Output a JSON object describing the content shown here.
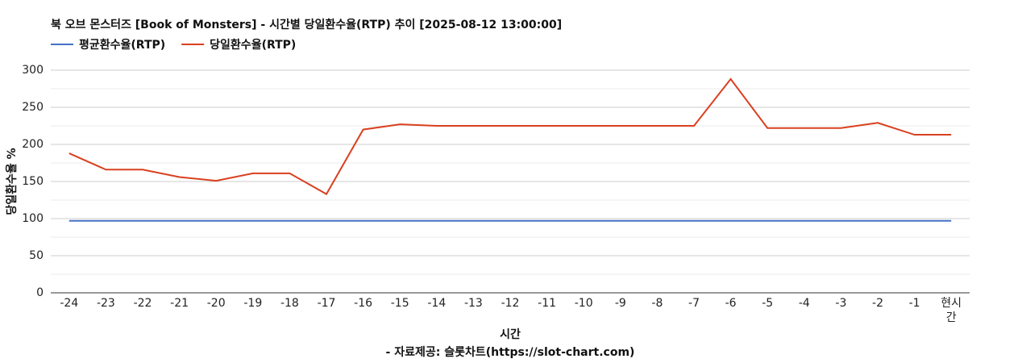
{
  "chart_data": {
    "type": "line",
    "title": "북 오브 몬스터즈 [Book of Monsters] - 시간별 당일환수율(RTP) 추이 [2025-08-12 13:00:00]",
    "x_label": "시간",
    "y_label": "당일환수율 %",
    "source": "- 자료제공: 슬롯차트(https://slot-chart.com)",
    "categories": [
      "-24",
      "-23",
      "-22",
      "-21",
      "-20",
      "-19",
      "-18",
      "-17",
      "-16",
      "-15",
      "-14",
      "-13",
      "-12",
      "-11",
      "-10",
      "-9",
      "-8",
      "-7",
      "-6",
      "-5",
      "-4",
      "-3",
      "-2",
      "-1",
      "현시간"
    ],
    "series": [
      {
        "name": "평균환수율(RTP)",
        "color": "#4472c4",
        "values": [
          97,
          97,
          97,
          97,
          97,
          97,
          97,
          97,
          97,
          97,
          97,
          97,
          97,
          97,
          97,
          97,
          97,
          97,
          97,
          97,
          97,
          97,
          97,
          97,
          97
        ]
      },
      {
        "name": "당일환수율(RTP)",
        "color": "#d9401f",
        "values": [
          188,
          166,
          166,
          156,
          151,
          161,
          161,
          133,
          220,
          227,
          225,
          225,
          225,
          225,
          225,
          225,
          225,
          225,
          288,
          222,
          222,
          222,
          229,
          213,
          213
        ]
      }
    ],
    "ylim": [
      0,
      300
    ],
    "yticks": [
      0,
      50,
      100,
      150,
      200,
      250,
      300
    ],
    "grid": true
  }
}
